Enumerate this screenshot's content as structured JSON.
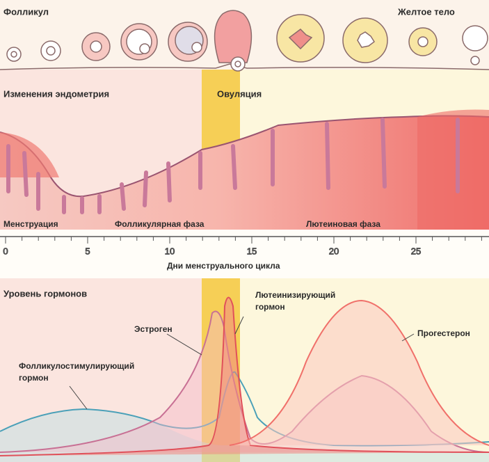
{
  "follicle": "Фолликул",
  "corpus_luteum": "Желтое тело",
  "endometrium": {
    "title": "Изменения эндометрия",
    "ovulation": "Овуляция",
    "phases": [
      "Менструация",
      "Фолликулярная фаза",
      "Лютеиновая фаза"
    ]
  },
  "axis": {
    "label": "Дни менструального цикла",
    "ticks": [
      0,
      5,
      10,
      15,
      20,
      25
    ]
  },
  "hormones": {
    "title": "Уровень гормонов",
    "estrogen": "Эстроген",
    "lh": [
      "Лютеинизирующий",
      "гормон"
    ],
    "progesterone": "Прогестерон",
    "fsh": [
      "Фолликулостимулирующий",
      "гормон"
    ]
  }
}
